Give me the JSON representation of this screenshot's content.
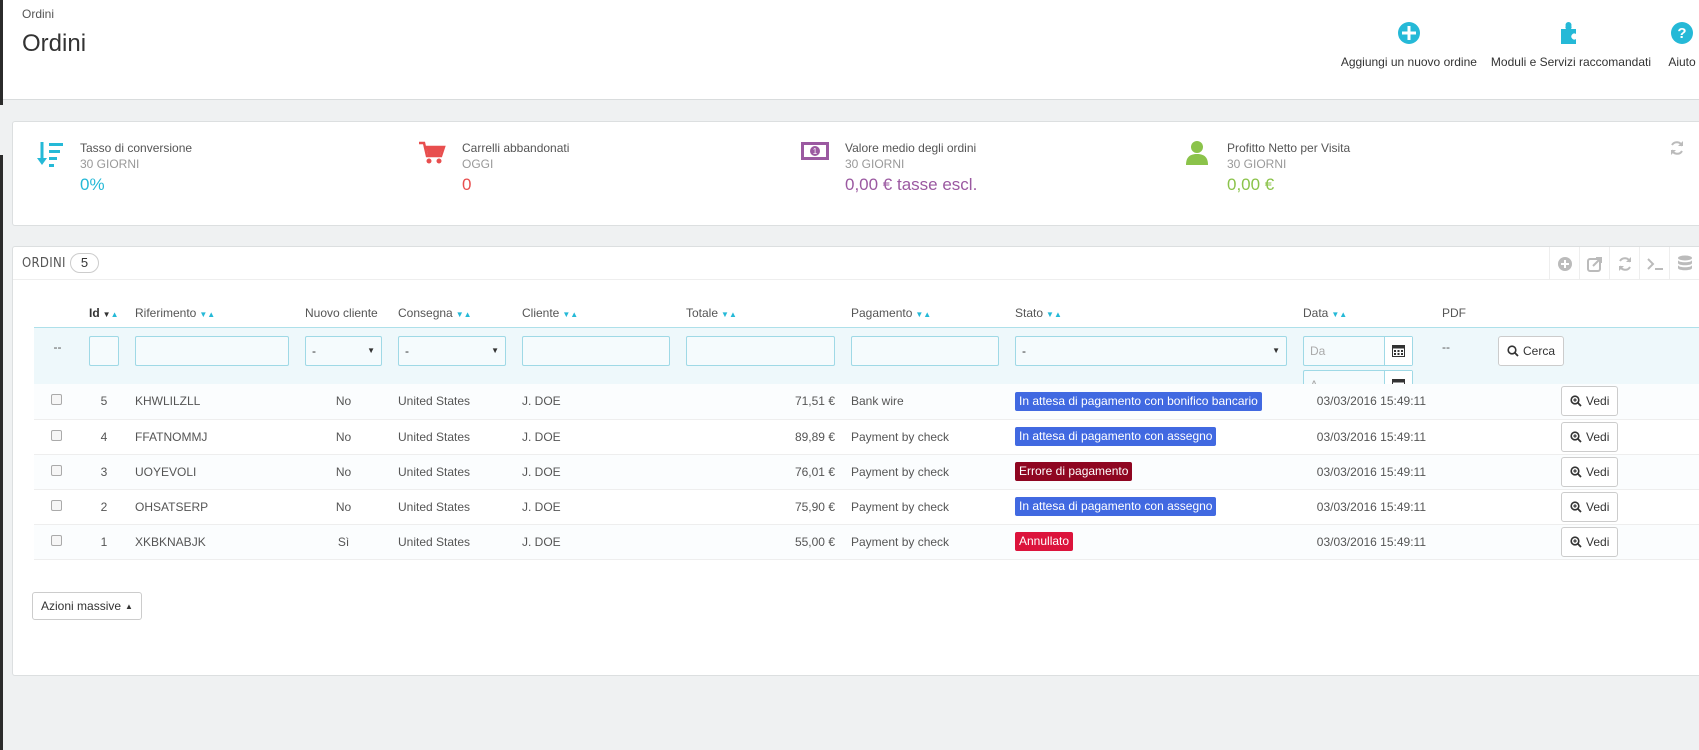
{
  "header": {
    "breadcrumb": "Ordini",
    "title": "Ordini",
    "toolbar": [
      {
        "label": "Aggiungi un nuovo ordine",
        "icon": "plus-circle-icon"
      },
      {
        "label": "Moduli e Servizi raccomandati",
        "icon": "puzzle-icon"
      },
      {
        "label": "Aiuto",
        "icon": "help-icon"
      }
    ]
  },
  "kpis": [
    {
      "title": "Tasso di conversione",
      "period": "30 GIORNI",
      "value": "0%",
      "color": "#25b9d7",
      "icon": "sort-amount-icon"
    },
    {
      "title": "Carrelli abbandonati",
      "period": "OGGI",
      "value": "0",
      "color": "#e84e4e",
      "icon": "shopping-cart-icon"
    },
    {
      "title": "Valore medio degli ordini",
      "period": "30 GIORNI",
      "value": "0,00 € tasse escl.",
      "color": "#9b59a1",
      "icon": "money-icon"
    },
    {
      "title": "Profitto Netto per Visita",
      "period": "30 GIORNI",
      "value": "0,00 €",
      "color": "#8bc34a",
      "icon": "user-icon"
    }
  ],
  "orders": {
    "title": "Ordini",
    "count": "5",
    "columns": {
      "id": "Id",
      "reference": "Riferimento",
      "new_client": "Nuovo cliente",
      "delivery": "Consegna",
      "customer": "Cliente",
      "total": "Totale",
      "payment": "Pagamento",
      "status": "Stato",
      "date": "Data",
      "pdf": "PDF"
    },
    "filters": {
      "checkbox_placeholder": "--",
      "new_client_selected": "-",
      "delivery_selected": "-",
      "status_selected": "-",
      "date_from_placeholder": "Da",
      "date_to_placeholder": "A",
      "pdf_placeholder": "--",
      "search_label": "Cerca"
    },
    "rows": [
      {
        "id": "5",
        "reference": "KHWLILZLL",
        "new_client": "No",
        "delivery": "United States",
        "customer": "J. DOE",
        "total": "71,51 €",
        "payment": "Bank wire",
        "status": "In attesa di pagamento con bonifico bancario",
        "status_color": "#4169e1",
        "date": "03/03/2016 15:49:11",
        "view_label": "Vedi"
      },
      {
        "id": "4",
        "reference": "FFATNOMMJ",
        "new_client": "No",
        "delivery": "United States",
        "customer": "J. DOE",
        "total": "89,89 €",
        "payment": "Payment by check",
        "status": "In attesa di pagamento con assegno",
        "status_color": "#4169e1",
        "date": "03/03/2016 15:49:11",
        "view_label": "Vedi"
      },
      {
        "id": "3",
        "reference": "UOYEVOLI",
        "new_client": "No",
        "delivery": "United States",
        "customer": "J. DOE",
        "total": "76,01 €",
        "payment": "Payment by check",
        "status": "Errore di pagamento",
        "status_color": "#8f0621",
        "date": "03/03/2016 15:49:11",
        "view_label": "Vedi"
      },
      {
        "id": "2",
        "reference": "OHSATSERP",
        "new_client": "No",
        "delivery": "United States",
        "customer": "J. DOE",
        "total": "75,90 €",
        "payment": "Payment by check",
        "status": "In attesa di pagamento con assegno",
        "status_color": "#4169e1",
        "date": "03/03/2016 15:49:11",
        "view_label": "Vedi"
      },
      {
        "id": "1",
        "reference": "XKBKNABJK",
        "new_client": "Sì",
        "delivery": "United States",
        "customer": "J. DOE",
        "total": "55,00 €",
        "payment": "Payment by check",
        "status": "Annullato",
        "status_color": "#dc143c",
        "date": "03/03/2016 15:49:11",
        "view_label": "Vedi"
      }
    ],
    "bulk_actions_label": "Azioni massive"
  }
}
